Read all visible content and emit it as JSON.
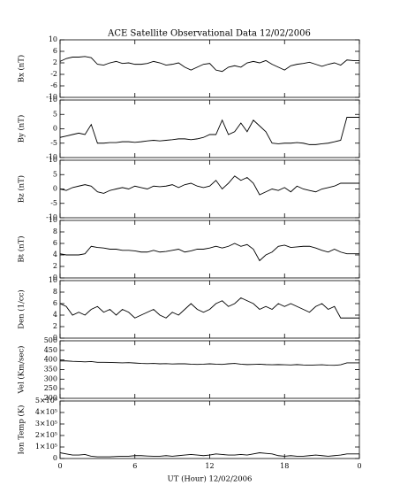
{
  "chart_data": [
    {
      "type": "line",
      "title": "ACE Satellite Observational Data   12/02/2006",
      "ylabel": "Bx (nT)",
      "color": "#000000",
      "x": [
        0,
        0.5,
        1,
        1.5,
        2,
        2.5,
        3,
        3.5,
        4,
        4.5,
        5,
        5.5,
        6,
        6.5,
        7,
        7.5,
        8,
        8.5,
        9,
        9.5,
        10,
        10.5,
        11,
        11.5,
        12,
        12.5,
        13,
        13.5,
        14,
        14.5,
        15,
        15.5,
        16,
        16.5,
        17,
        17.5,
        18,
        18.5,
        19,
        19.5,
        20,
        20.5,
        21,
        21.5,
        22,
        22.5,
        23,
        23.5,
        24
      ],
      "values": [
        2.5,
        3.5,
        4,
        4,
        4.2,
        3.8,
        1.5,
        1.2,
        2,
        2.5,
        1.8,
        2,
        1.5,
        1.5,
        1.8,
        2.5,
        2,
        1.2,
        1.5,
        2,
        0.5,
        -0.5,
        0.5,
        1.5,
        1.8,
        -0.5,
        -1,
        0.5,
        1,
        0.5,
        2,
        2.5,
        2,
        2.8,
        1.5,
        0.5,
        -0.5,
        1,
        1.5,
        1.8,
        2.2,
        1.5,
        0.8,
        1.5,
        2,
        1.2,
        3,
        2.8,
        2.8
      ],
      "xlim": [
        0,
        24
      ],
      "ylim": [
        -10,
        10
      ],
      "yticks": [
        10,
        6,
        2,
        -2,
        -6,
        -10
      ]
    },
    {
      "type": "line",
      "ylabel": "By (nT)",
      "color": "#000000",
      "x": [
        0,
        0.5,
        1,
        1.5,
        2,
        2.5,
        3,
        3.5,
        4,
        4.5,
        5,
        5.5,
        6,
        6.5,
        7,
        7.5,
        8,
        8.5,
        9,
        9.5,
        10,
        10.5,
        11,
        11.5,
        12,
        12.5,
        13,
        13.5,
        14,
        14.5,
        15,
        15.5,
        16,
        16.5,
        17,
        17.5,
        18,
        18.5,
        19,
        19.5,
        20,
        20.5,
        21,
        21.5,
        22,
        22.5,
        23,
        23.5,
        24
      ],
      "values": [
        -3,
        -2.5,
        -2,
        -1.5,
        -2,
        1.5,
        -5,
        -5,
        -4.8,
        -4.8,
        -4.5,
        -4.5,
        -4.7,
        -4.5,
        -4.2,
        -4,
        -4.2,
        -4,
        -3.8,
        -3.5,
        -3.5,
        -3.8,
        -3.5,
        -3,
        -2,
        -2,
        3,
        -2,
        -1,
        2,
        -1,
        3,
        1,
        -1,
        -5,
        -5.2,
        -5,
        -5,
        -4.8,
        -5,
        -5.5,
        -5.5,
        -5.2,
        -5,
        -4.5,
        -4,
        4,
        4,
        4
      ],
      "xlim": [
        0,
        24
      ],
      "ylim": [
        -10,
        10
      ],
      "yticks": [
        10,
        5,
        0,
        -5,
        -10
      ]
    },
    {
      "type": "line",
      "ylabel": "Bz (nT)",
      "color": "#000000",
      "x": [
        0,
        0.5,
        1,
        1.5,
        2,
        2.5,
        3,
        3.5,
        4,
        4.5,
        5,
        5.5,
        6,
        6.5,
        7,
        7.5,
        8,
        8.5,
        9,
        9.5,
        10,
        10.5,
        11,
        11.5,
        12,
        12.5,
        13,
        13.5,
        14,
        14.5,
        15,
        15.5,
        16,
        16.5,
        17,
        17.5,
        18,
        18.5,
        19,
        19.5,
        20,
        20.5,
        21,
        21.5,
        22,
        22.5,
        23,
        23.5,
        24
      ],
      "values": [
        0,
        -0.5,
        0.5,
        1,
        1.5,
        1,
        -1,
        -1.5,
        -0.5,
        0,
        0.5,
        0,
        1,
        0.5,
        0,
        1,
        0.8,
        1,
        1.5,
        0.5,
        1.5,
        2,
        1,
        0.5,
        1,
        3,
        0,
        2,
        4.5,
        3,
        4,
        2,
        -2,
        -1,
        0,
        -0.5,
        0.5,
        -1,
        1,
        0,
        -0.5,
        -1,
        0,
        0.5,
        1,
        2,
        2,
        2,
        2
      ],
      "xlim": [
        0,
        24
      ],
      "ylim": [
        -10,
        10
      ],
      "yticks": [
        10,
        5,
        0,
        -5,
        -10
      ]
    },
    {
      "type": "line",
      "ylabel": "Bt (nT)",
      "color": "#000000",
      "x": [
        0,
        0.5,
        1,
        1.5,
        2,
        2.5,
        3,
        3.5,
        4,
        4.5,
        5,
        5.5,
        6,
        6.5,
        7,
        7.5,
        8,
        8.5,
        9,
        9.5,
        10,
        10.5,
        11,
        11.5,
        12,
        12.5,
        13,
        13.5,
        14,
        14.5,
        15,
        15.5,
        16,
        16.5,
        17,
        17.5,
        18,
        18.5,
        19,
        19.5,
        20,
        20.5,
        21,
        21.5,
        22,
        22.5,
        23,
        23.5,
        24
      ],
      "values": [
        4.2,
        4,
        4,
        4,
        4.2,
        5.5,
        5.3,
        5.2,
        5,
        5,
        4.8,
        4.8,
        4.7,
        4.5,
        4.5,
        4.8,
        4.5,
        4.6,
        4.8,
        5,
        4.5,
        4.7,
        5,
        5,
        5.2,
        5.5,
        5.2,
        5.5,
        6,
        5.5,
        5.8,
        5,
        3,
        4,
        4.5,
        5.5,
        5.7,
        5.3,
        5.4,
        5.5,
        5.5,
        5.2,
        4.8,
        4.5,
        5,
        4.5,
        4.2,
        4.2,
        4.2
      ],
      "xlim": [
        0,
        24
      ],
      "ylim": [
        0,
        10
      ],
      "yticks": [
        0,
        2,
        4,
        6,
        8,
        10
      ]
    },
    {
      "type": "line",
      "ylabel": "Den (1/cc)",
      "color": "#000000",
      "x": [
        0,
        0.5,
        1,
        1.5,
        2,
        2.5,
        3,
        3.5,
        4,
        4.5,
        5,
        5.5,
        6,
        6.5,
        7,
        7.5,
        8,
        8.5,
        9,
        9.5,
        10,
        10.5,
        11,
        11.5,
        12,
        12.5,
        13,
        13.5,
        14,
        14.5,
        15,
        15.5,
        16,
        16.5,
        17,
        17.5,
        18,
        18.5,
        19,
        19.5,
        20,
        20.5,
        21,
        21.5,
        22,
        22.5,
        23,
        23.5,
        24
      ],
      "values": [
        6,
        5.5,
        4,
        4.5,
        4,
        5,
        5.5,
        4.5,
        5,
        4,
        5,
        4.5,
        3.5,
        4,
        4.5,
        5,
        4,
        3.5,
        4.5,
        4,
        5,
        6,
        5,
        4.5,
        5,
        6,
        6.5,
        5.5,
        6,
        7,
        6.5,
        6,
        5,
        5.5,
        5,
        6,
        5.5,
        6,
        5.5,
        5,
        4.5,
        5.5,
        6,
        5,
        5.5,
        3.5,
        3.5,
        3.5,
        3.5
      ],
      "xlim": [
        0,
        24
      ],
      "ylim": [
        0,
        10
      ],
      "yticks": [
        0,
        2,
        4,
        6,
        8,
        10
      ]
    },
    {
      "type": "line",
      "ylabel": "Vel (Km/sec)",
      "color": "#000000",
      "x": [
        0,
        0.5,
        1,
        1.5,
        2,
        2.5,
        3,
        3.5,
        4,
        4.5,
        5,
        5.5,
        6,
        6.5,
        7,
        7.5,
        8,
        8.5,
        9,
        9.5,
        10,
        10.5,
        11,
        11.5,
        12,
        12.5,
        13,
        13.5,
        14,
        14.5,
        15,
        15.5,
        16,
        16.5,
        17,
        17.5,
        18,
        18.5,
        19,
        19.5,
        20,
        20.5,
        21,
        21.5,
        22,
        22.5,
        23,
        23.5,
        24
      ],
      "values": [
        395,
        395,
        393,
        392,
        390,
        392,
        388,
        388,
        387,
        386,
        385,
        386,
        384,
        382,
        381,
        382,
        380,
        381,
        379,
        380,
        380,
        378,
        377,
        378,
        380,
        378,
        377,
        380,
        382,
        378,
        376,
        377,
        378,
        376,
        375,
        376,
        375,
        374,
        376,
        374,
        373,
        374,
        375,
        373,
        372,
        375,
        385,
        385,
        385
      ],
      "xlim": [
        0,
        24
      ],
      "ylim": [
        200,
        500
      ],
      "yticks": [
        200,
        250,
        300,
        350,
        400,
        450,
        500
      ]
    },
    {
      "type": "line",
      "ylabel": "Ion Temp (K)",
      "xlabel": "UT (Hour)   12/02/2006",
      "color": "#000000",
      "x": [
        0,
        0.5,
        1,
        1.5,
        2,
        2.5,
        3,
        3.5,
        4,
        4.5,
        5,
        5.5,
        6,
        6.5,
        7,
        7.5,
        8,
        8.5,
        9,
        9.5,
        10,
        10.5,
        11,
        11.5,
        12,
        12.5,
        13,
        13.5,
        14,
        14.5,
        15,
        15.5,
        16,
        16.5,
        17,
        17.5,
        18,
        18.5,
        19,
        19.5,
        20,
        20.5,
        21,
        21.5,
        22,
        22.5,
        23,
        23.5,
        24
      ],
      "values": [
        50000,
        40000,
        30000,
        30000,
        35000,
        20000,
        15000,
        15000,
        15000,
        18000,
        20000,
        20000,
        25000,
        25000,
        22000,
        20000,
        20000,
        25000,
        20000,
        25000,
        30000,
        35000,
        30000,
        25000,
        30000,
        40000,
        35000,
        30000,
        30000,
        35000,
        30000,
        40000,
        50000,
        45000,
        40000,
        25000,
        20000,
        25000,
        20000,
        20000,
        25000,
        30000,
        25000,
        20000,
        25000,
        30000,
        40000,
        40000,
        40000
      ],
      "xlim": [
        0,
        24
      ],
      "xticks": [
        0,
        6,
        12,
        18,
        {
          "value": 24,
          "label": "0"
        }
      ],
      "ylim": [
        0,
        500000
      ],
      "yticks": [
        0,
        {
          "value": 100000,
          "label": "1×10⁵"
        },
        {
          "value": 200000,
          "label": "2×10⁵"
        },
        {
          "value": 300000,
          "label": "3×10⁵"
        },
        {
          "value": 400000,
          "label": "4×10⁵"
        },
        {
          "value": 500000,
          "label": "5×10⁵"
        }
      ]
    }
  ]
}
